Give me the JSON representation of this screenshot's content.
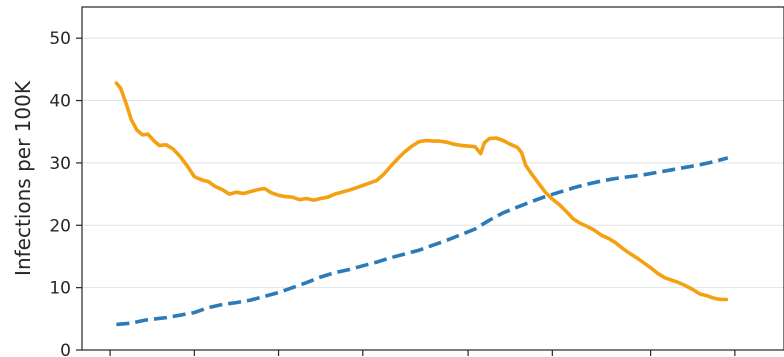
{
  "chart_data": {
    "type": "line",
    "title": "",
    "xlabel": "",
    "ylabel": "Infections per 100K",
    "ylim": [
      0,
      55
    ],
    "xlim": [
      0,
      100
    ],
    "yticks": [
      0,
      10,
      20,
      30,
      40,
      50
    ],
    "xticks": [
      4,
      16,
      28,
      40,
      55,
      67,
      81,
      93
    ],
    "grid": "y",
    "legend": "none",
    "series": [
      {
        "color": "#f5a011",
        "style": "solid",
        "points": [
          [
            4.9,
            42.8
          ],
          [
            5.5,
            42.0
          ],
          [
            6.3,
            39.5
          ],
          [
            7.0,
            37.0
          ],
          [
            7.8,
            35.3
          ],
          [
            8.6,
            34.5
          ],
          [
            9.4,
            34.6
          ],
          [
            10.2,
            33.6
          ],
          [
            11.0,
            32.8
          ],
          [
            12.0,
            32.9
          ],
          [
            13.0,
            32.2
          ],
          [
            14.0,
            31.0
          ],
          [
            15.0,
            29.5
          ],
          [
            16.0,
            27.8
          ],
          [
            17.0,
            27.3
          ],
          [
            18.0,
            27.0
          ],
          [
            19.0,
            26.2
          ],
          [
            20.0,
            25.7
          ],
          [
            21.0,
            25.0
          ],
          [
            22.0,
            25.3
          ],
          [
            23.0,
            25.1
          ],
          [
            24.0,
            25.4
          ],
          [
            25.0,
            25.7
          ],
          [
            26.0,
            25.9
          ],
          [
            27.0,
            25.2
          ],
          [
            28.0,
            24.8
          ],
          [
            29.0,
            24.6
          ],
          [
            30.0,
            24.5
          ],
          [
            31.0,
            24.1
          ],
          [
            32.0,
            24.3
          ],
          [
            33.0,
            24.0
          ],
          [
            34.0,
            24.3
          ],
          [
            35.0,
            24.5
          ],
          [
            36.0,
            25.0
          ],
          [
            37.0,
            25.3
          ],
          [
            38.0,
            25.6
          ],
          [
            39.0,
            26.0
          ],
          [
            40.0,
            26.4
          ],
          [
            41.0,
            26.8
          ],
          [
            42.0,
            27.2
          ],
          [
            43.0,
            28.2
          ],
          [
            44.0,
            29.5
          ],
          [
            45.0,
            30.7
          ],
          [
            46.0,
            31.8
          ],
          [
            47.0,
            32.7
          ],
          [
            48.0,
            33.4
          ],
          [
            49.0,
            33.6
          ],
          [
            50.0,
            33.5
          ],
          [
            51.0,
            33.5
          ],
          [
            52.0,
            33.3
          ],
          [
            53.0,
            33.0
          ],
          [
            54.0,
            32.8
          ],
          [
            55.0,
            32.7
          ],
          [
            56.0,
            32.6
          ],
          [
            56.8,
            31.5
          ],
          [
            57.3,
            33.2
          ],
          [
            58.0,
            33.9
          ],
          [
            59.0,
            34.0
          ],
          [
            60.0,
            33.6
          ],
          [
            61.0,
            33.0
          ],
          [
            62.0,
            32.5
          ],
          [
            62.6,
            31.7
          ],
          [
            63.2,
            29.6
          ],
          [
            64.0,
            28.3
          ],
          [
            65.0,
            26.8
          ],
          [
            66.0,
            25.3
          ],
          [
            67.0,
            24.2
          ],
          [
            68.0,
            23.3
          ],
          [
            69.0,
            22.2
          ],
          [
            70.0,
            21.0
          ],
          [
            71.0,
            20.3
          ],
          [
            72.0,
            19.8
          ],
          [
            73.0,
            19.2
          ],
          [
            74.0,
            18.4
          ],
          [
            75.0,
            17.9
          ],
          [
            76.0,
            17.2
          ],
          [
            77.0,
            16.3
          ],
          [
            78.0,
            15.5
          ],
          [
            79.0,
            14.8
          ],
          [
            80.0,
            14.0
          ],
          [
            81.0,
            13.2
          ],
          [
            82.0,
            12.3
          ],
          [
            83.0,
            11.6
          ],
          [
            84.0,
            11.2
          ],
          [
            85.0,
            10.8
          ],
          [
            86.0,
            10.3
          ],
          [
            87.0,
            9.7
          ],
          [
            88.0,
            9.0
          ],
          [
            89.0,
            8.7
          ],
          [
            90.0,
            8.3
          ],
          [
            91.0,
            8.1
          ],
          [
            91.8,
            8.1
          ]
        ]
      },
      {
        "color": "#2b7bb9",
        "style": "dashed",
        "points": [
          [
            4.9,
            4.1
          ],
          [
            7.0,
            4.3
          ],
          [
            9.0,
            4.8
          ],
          [
            12.0,
            5.2
          ],
          [
            14.0,
            5.6
          ],
          [
            16.0,
            6.0
          ],
          [
            18.0,
            6.8
          ],
          [
            20.0,
            7.3
          ],
          [
            22.0,
            7.6
          ],
          [
            24.0,
            8.0
          ],
          [
            26.0,
            8.6
          ],
          [
            28.0,
            9.2
          ],
          [
            30.0,
            10.0
          ],
          [
            32.0,
            10.8
          ],
          [
            34.0,
            11.7
          ],
          [
            36.0,
            12.4
          ],
          [
            38.0,
            12.9
          ],
          [
            40.0,
            13.5
          ],
          [
            42.0,
            14.1
          ],
          [
            44.0,
            14.8
          ],
          [
            46.0,
            15.4
          ],
          [
            48.0,
            16.0
          ],
          [
            50.0,
            16.8
          ],
          [
            52.0,
            17.6
          ],
          [
            54.0,
            18.5
          ],
          [
            56.0,
            19.4
          ],
          [
            58.0,
            20.8
          ],
          [
            60.0,
            22.0
          ],
          [
            62.0,
            22.9
          ],
          [
            64.0,
            23.8
          ],
          [
            66.0,
            24.6
          ],
          [
            68.0,
            25.3
          ],
          [
            70.0,
            26.0
          ],
          [
            72.0,
            26.6
          ],
          [
            74.0,
            27.1
          ],
          [
            76.0,
            27.5
          ],
          [
            78.0,
            27.8
          ],
          [
            80.0,
            28.1
          ],
          [
            82.0,
            28.5
          ],
          [
            84.0,
            28.9
          ],
          [
            86.0,
            29.3
          ],
          [
            88.0,
            29.7
          ],
          [
            90.0,
            30.2
          ],
          [
            92.0,
            30.8
          ]
        ]
      }
    ]
  }
}
